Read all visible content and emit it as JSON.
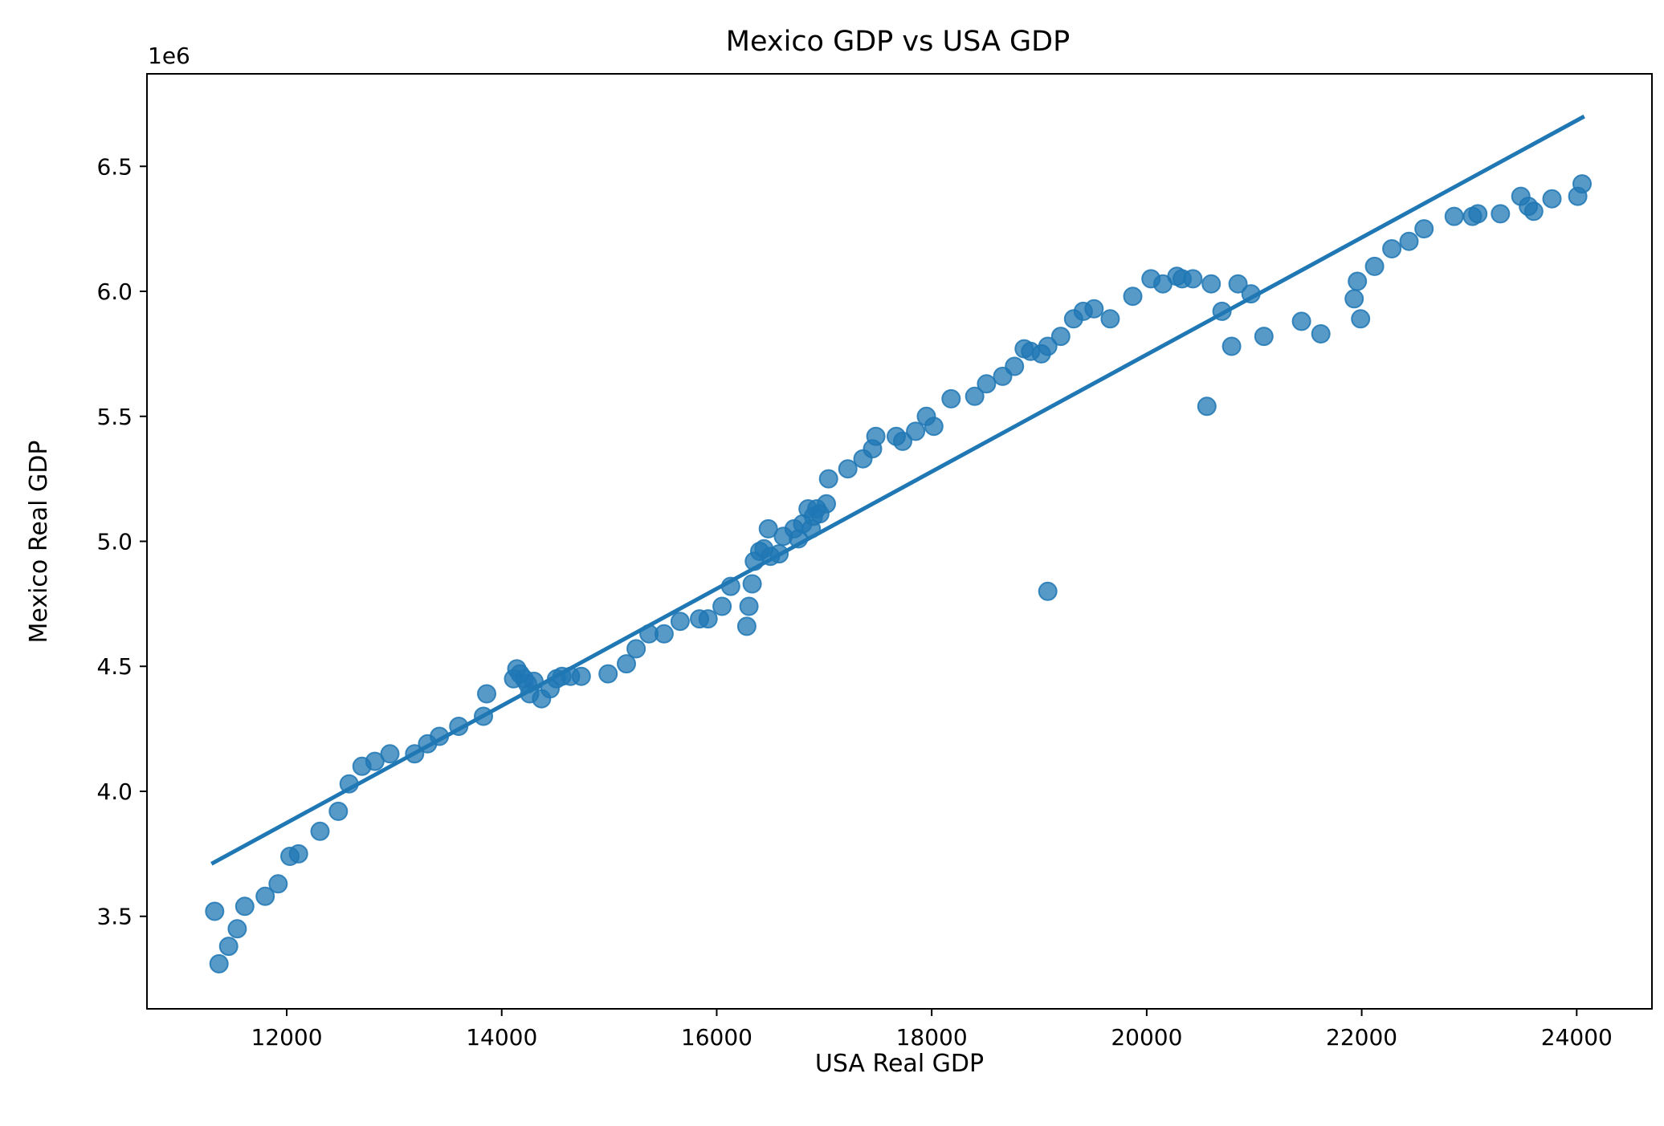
{
  "chart_data": {
    "type": "scatter",
    "title": "Mexico GDP vs USA GDP",
    "xlabel": "USA Real GDP",
    "ylabel": "Mexico Real GDP",
    "y_offset_label": "1e6",
    "xlim": [
      10700,
      24700
    ],
    "ylim": [
      3.13,
      6.87
    ],
    "x_ticks": [
      12000,
      14000,
      16000,
      18000,
      20000,
      22000,
      24000
    ],
    "x_tick_labels": [
      "12000",
      "14000",
      "16000",
      "18000",
      "20000",
      "22000",
      "24000"
    ],
    "y_ticks": [
      3.5,
      4.0,
      4.5,
      5.0,
      5.5,
      6.0,
      6.5
    ],
    "y_tick_labels": [
      "3.5",
      "4.0",
      "4.5",
      "5.0",
      "5.5",
      "6.0",
      "6.5"
    ],
    "grid": false,
    "color": "#1f77b4",
    "points": [
      [
        11330,
        3.52
      ],
      [
        11370,
        3.31
      ],
      [
        11460,
        3.38
      ],
      [
        11540,
        3.45
      ],
      [
        11610,
        3.54
      ],
      [
        11800,
        3.58
      ],
      [
        11920,
        3.63
      ],
      [
        12030,
        3.74
      ],
      [
        12110,
        3.75
      ],
      [
        12310,
        3.84
      ],
      [
        12480,
        3.92
      ],
      [
        12580,
        4.03
      ],
      [
        12700,
        4.1
      ],
      [
        12820,
        4.12
      ],
      [
        12960,
        4.15
      ],
      [
        13190,
        4.15
      ],
      [
        13310,
        4.19
      ],
      [
        13420,
        4.22
      ],
      [
        13600,
        4.26
      ],
      [
        13830,
        4.3
      ],
      [
        13860,
        4.39
      ],
      [
        14110,
        4.45
      ],
      [
        14140,
        4.49
      ],
      [
        14170,
        4.47
      ],
      [
        14210,
        4.45
      ],
      [
        14240,
        4.43
      ],
      [
        14260,
        4.39
      ],
      [
        14300,
        4.44
      ],
      [
        14370,
        4.37
      ],
      [
        14450,
        4.41
      ],
      [
        14510,
        4.45
      ],
      [
        14560,
        4.46
      ],
      [
        14640,
        4.46
      ],
      [
        14740,
        4.46
      ],
      [
        14990,
        4.47
      ],
      [
        15160,
        4.51
      ],
      [
        15250,
        4.57
      ],
      [
        15370,
        4.63
      ],
      [
        15510,
        4.63
      ],
      [
        15660,
        4.68
      ],
      [
        15840,
        4.69
      ],
      [
        15920,
        4.69
      ],
      [
        16050,
        4.74
      ],
      [
        16130,
        4.82
      ],
      [
        16280,
        4.66
      ],
      [
        16300,
        4.74
      ],
      [
        16330,
        4.83
      ],
      [
        16350,
        4.92
      ],
      [
        16400,
        4.96
      ],
      [
        16440,
        4.97
      ],
      [
        16480,
        5.05
      ],
      [
        16500,
        4.94
      ],
      [
        16580,
        4.95
      ],
      [
        16620,
        5.02
      ],
      [
        16720,
        5.05
      ],
      [
        16760,
        5.01
      ],
      [
        16800,
        5.07
      ],
      [
        16850,
        5.13
      ],
      [
        16880,
        5.05
      ],
      [
        16900,
        5.1
      ],
      [
        16930,
        5.13
      ],
      [
        16960,
        5.11
      ],
      [
        17020,
        5.15
      ],
      [
        17040,
        5.25
      ],
      [
        17220,
        5.29
      ],
      [
        17360,
        5.33
      ],
      [
        17450,
        5.37
      ],
      [
        17480,
        5.42
      ],
      [
        17670,
        5.42
      ],
      [
        17730,
        5.4
      ],
      [
        17850,
        5.44
      ],
      [
        17950,
        5.5
      ],
      [
        18020,
        5.46
      ],
      [
        18180,
        5.57
      ],
      [
        18400,
        5.58
      ],
      [
        18510,
        5.63
      ],
      [
        18660,
        5.66
      ],
      [
        18770,
        5.7
      ],
      [
        18860,
        5.77
      ],
      [
        18920,
        5.76
      ],
      [
        19020,
        5.75
      ],
      [
        19080,
        4.8
      ],
      [
        19080,
        5.78
      ],
      [
        19200,
        5.82
      ],
      [
        19320,
        5.89
      ],
      [
        19410,
        5.92
      ],
      [
        19510,
        5.93
      ],
      [
        19660,
        5.89
      ],
      [
        19870,
        5.98
      ],
      [
        20040,
        6.05
      ],
      [
        20150,
        6.03
      ],
      [
        20280,
        6.06
      ],
      [
        20330,
        6.05
      ],
      [
        20430,
        6.05
      ],
      [
        20560,
        5.54
      ],
      [
        20600,
        6.03
      ],
      [
        20700,
        5.92
      ],
      [
        20790,
        5.78
      ],
      [
        20850,
        6.03
      ],
      [
        20970,
        5.99
      ],
      [
        21090,
        5.82
      ],
      [
        21440,
        5.88
      ],
      [
        21620,
        5.83
      ],
      [
        21930,
        5.97
      ],
      [
        21960,
        6.04
      ],
      [
        21990,
        5.89
      ],
      [
        22120,
        6.1
      ],
      [
        22280,
        6.17
      ],
      [
        22440,
        6.2
      ],
      [
        22580,
        6.25
      ],
      [
        22860,
        6.3
      ],
      [
        23030,
        6.3
      ],
      [
        23080,
        6.31
      ],
      [
        23290,
        6.31
      ],
      [
        23480,
        6.38
      ],
      [
        23550,
        6.34
      ],
      [
        23600,
        6.32
      ],
      [
        23770,
        6.37
      ],
      [
        24010,
        6.38
      ],
      [
        24050,
        6.43
      ]
    ],
    "fit_line": {
      "x": [
        11300,
        24070
      ],
      "y": [
        3.71,
        6.7
      ]
    }
  }
}
